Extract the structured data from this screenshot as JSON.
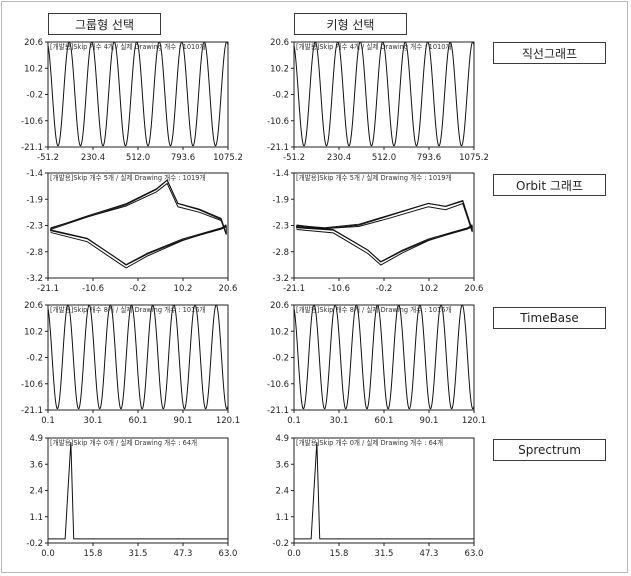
{
  "header": {
    "group_select_label": "그룹형 선택",
    "key_select_label": "키형 선택"
  },
  "side_buttons": [
    {
      "label": "직선그래프"
    },
    {
      "label": "Orbit 그래프"
    },
    {
      "label": "TimeBase"
    },
    {
      "label": "Sprectrum"
    }
  ],
  "chart_data": [
    {
      "type": "line",
      "panel": "group-linear",
      "info": "[개발용]Skip 개수 4개 / 실제 Drawing 개수 : 1010개",
      "xticks": [
        "-51.2",
        "230.4",
        "512.0",
        "793.6",
        "1075.2"
      ],
      "yticks": [
        "20.6",
        "10.2",
        "-0.2",
        "-10.6",
        "-21.1"
      ],
      "xlim": [
        -51.2,
        1075.2
      ],
      "ylim": [
        -21.1,
        20.6
      ],
      "cycles": 8,
      "amplitude": 20.6
    },
    {
      "type": "line",
      "panel": "key-linear",
      "info": "[개발용]Skip 개수 4개 / 실제 Drawing 개수 : 1010개",
      "xticks": [
        "-51.2",
        "230.4",
        "512.0",
        "793.6",
        "1075.2"
      ],
      "yticks": [
        "20.6",
        "10.2",
        "-0.2",
        "-10.6",
        "-21.1"
      ],
      "xlim": [
        -51.2,
        1075.2
      ],
      "ylim": [
        -21.1,
        20.6
      ],
      "cycles": 8,
      "amplitude": 20.6
    },
    {
      "type": "line",
      "panel": "group-orbit",
      "info": "[개발용]Skip 개수 5개 / 실제 Drawing 개수 : 1019개",
      "xticks": [
        "-21.1",
        "-10.6",
        "-0.2",
        "10.2",
        "20.6"
      ],
      "yticks": [
        "-1.4",
        "-1.9",
        "-2.3",
        "-2.8",
        "-3.2"
      ],
      "xlim": [
        -21.1,
        20.6
      ],
      "ylim": [
        -3.2,
        -1.4
      ],
      "upper": [
        [
          -20.5,
          -2.35
        ],
        [
          -12,
          -2.15
        ],
        [
          -3,
          -1.95
        ],
        [
          4,
          -1.7
        ],
        [
          6.5,
          -1.55
        ],
        [
          9,
          -1.95
        ],
        [
          14,
          -2.05
        ],
        [
          19,
          -2.2
        ],
        [
          20.2,
          -2.45
        ]
      ],
      "lower": [
        [
          -20.5,
          -2.4
        ],
        [
          -12,
          -2.55
        ],
        [
          -6,
          -2.85
        ],
        [
          -3,
          -3.0
        ],
        [
          2,
          -2.8
        ],
        [
          10,
          -2.55
        ],
        [
          19,
          -2.35
        ],
        [
          20.2,
          -2.3
        ]
      ]
    },
    {
      "type": "line",
      "panel": "key-orbit",
      "info": "[개발용]Skip 개수 5개 / 실제 Drawing 개수 : 1019개",
      "xticks": [
        "-21.1",
        "-10.6",
        "-0.2",
        "10.2",
        "20.6"
      ],
      "yticks": [
        "-1.4",
        "-1.9",
        "-2.3",
        "-2.8",
        "-3.2"
      ],
      "xlim": [
        -21.1,
        20.6
      ],
      "ylim": [
        -3.2,
        -1.4
      ],
      "upper": [
        [
          -20.5,
          -2.3
        ],
        [
          -14,
          -2.35
        ],
        [
          -6,
          -2.3
        ],
        [
          1,
          -2.15
        ],
        [
          10,
          -1.95
        ],
        [
          14,
          -2.0
        ],
        [
          18,
          -1.9
        ],
        [
          20.2,
          -2.4
        ]
      ],
      "lower": [
        [
          -20.5,
          -2.35
        ],
        [
          -12,
          -2.4
        ],
        [
          -4,
          -2.75
        ],
        [
          -1,
          -2.95
        ],
        [
          4,
          -2.75
        ],
        [
          10,
          -2.55
        ],
        [
          19,
          -2.35
        ],
        [
          20.2,
          -2.3
        ]
      ]
    },
    {
      "type": "line",
      "panel": "group-timebase",
      "info": "[개발용]Skip 개수 8개 / 실제 Drawing 개수 : 1016개",
      "xticks": [
        "0.1",
        "30.1",
        "60.1",
        "90.1",
        "120.1"
      ],
      "yticks": [
        "20.6",
        "10.2",
        "-0.2",
        "-10.6",
        "-21.1"
      ],
      "xlim": [
        0.1,
        128.0
      ],
      "ylim": [
        -21.1,
        20.6
      ],
      "cycles": 8.5,
      "amplitude": 20.6
    },
    {
      "type": "line",
      "panel": "key-timebase",
      "info": "[개발용]Skip 개수 8개 / 실제 Drawing 개수 : 1016개",
      "xticks": [
        "0.1",
        "30.1",
        "60.1",
        "90.1",
        "120.1"
      ],
      "yticks": [
        "20.6",
        "10.2",
        "-0.2",
        "-10.6",
        "-21.1"
      ],
      "xlim": [
        0.1,
        128.0
      ],
      "ylim": [
        -21.1,
        20.6
      ],
      "cycles": 8.5,
      "amplitude": 20.6
    },
    {
      "type": "line",
      "panel": "group-spectrum",
      "info": "[개발용]Skip 개수 0개 / 실제 Drawing 개수 : 64개",
      "xticks": [
        "0.0",
        "15.8",
        "31.5",
        "47.3",
        "63.0"
      ],
      "yticks": [
        "4.9",
        "3.6",
        "2.4",
        "1.1",
        "-0.2"
      ],
      "xlim": [
        0.0,
        63.0
      ],
      "ylim": [
        -0.2,
        4.9
      ],
      "x": [
        0,
        6,
        7,
        8,
        9,
        63
      ],
      "y": [
        0,
        0,
        2.4,
        4.7,
        0,
        0
      ]
    },
    {
      "type": "line",
      "panel": "key-spectrum",
      "info": "[개발용]Skip 개수 0개 / 실제 Drawing 개수 : 64개",
      "xticks": [
        "0.0",
        "15.8",
        "31.5",
        "47.3",
        "63.0"
      ],
      "yticks": [
        "4.9",
        "3.6",
        "2.4",
        "1.1",
        "-0.2"
      ],
      "xlim": [
        0.0,
        63.0
      ],
      "ylim": [
        -0.2,
        4.9
      ],
      "x": [
        0,
        6,
        7,
        8,
        9,
        63
      ],
      "y": [
        0,
        0,
        2.4,
        4.7,
        0,
        0
      ]
    }
  ]
}
